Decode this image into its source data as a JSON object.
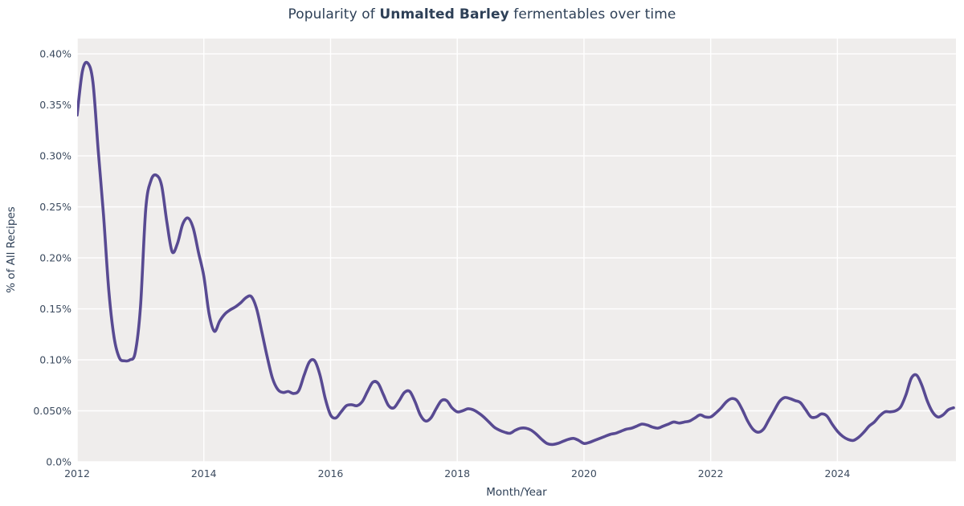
{
  "title": {
    "prefix": "Popularity of ",
    "emphasis": "Unmalted Barley",
    "suffix": " fermentables over time"
  },
  "chart_data": {
    "type": "line",
    "title": "Popularity of Unmalted Barley fermentables over time",
    "xlabel": "Month/Year",
    "ylabel": "% of All Recipes",
    "legend_position": "none",
    "grid": true,
    "colors": {
      "line": "#584a92",
      "plot_background": "#efedec",
      "gridline": "#ffffff",
      "title_text": "#2e4057",
      "tick_text": "#3c4b5f"
    },
    "ylim": [
      0,
      0.415
    ],
    "x_range": [
      "2012-01",
      "2025-11"
    ],
    "y_ticks": [
      {
        "value": 0.0,
        "label": "0.0%"
      },
      {
        "value": 0.05,
        "label": "0.050%"
      },
      {
        "value": 0.1,
        "label": "0.10%"
      },
      {
        "value": 0.15,
        "label": "0.15%"
      },
      {
        "value": 0.2,
        "label": "0.20%"
      },
      {
        "value": 0.25,
        "label": "0.25%"
      },
      {
        "value": 0.3,
        "label": "0.30%"
      },
      {
        "value": 0.35,
        "label": "0.35%"
      },
      {
        "value": 0.4,
        "label": "0.40%"
      }
    ],
    "x_ticks": [
      {
        "month_index": 0,
        "label": "2012"
      },
      {
        "month_index": 24,
        "label": "2014"
      },
      {
        "month_index": 48,
        "label": "2016"
      },
      {
        "month_index": 72,
        "label": "2018"
      },
      {
        "month_index": 96,
        "label": "2020"
      },
      {
        "month_index": 120,
        "label": "2022"
      },
      {
        "month_index": 144,
        "label": "2024"
      }
    ],
    "series": [
      {
        "name": "Unmalted Barley",
        "unit": "% of all recipes",
        "start_month": "2012-01",
        "frequency": "monthly",
        "values_pct": [
          0.34,
          0.383,
          0.391,
          0.372,
          0.305,
          0.242,
          0.168,
          0.122,
          0.102,
          0.099,
          0.1,
          0.107,
          0.152,
          0.248,
          0.276,
          0.281,
          0.271,
          0.235,
          0.206,
          0.214,
          0.233,
          0.239,
          0.229,
          0.205,
          0.182,
          0.145,
          0.128,
          0.138,
          0.145,
          0.149,
          0.152,
          0.156,
          0.161,
          0.162,
          0.15,
          0.127,
          0.103,
          0.082,
          0.071,
          0.068,
          0.069,
          0.067,
          0.07,
          0.085,
          0.098,
          0.099,
          0.085,
          0.062,
          0.046,
          0.043,
          0.049,
          0.055,
          0.056,
          0.055,
          0.059,
          0.069,
          0.078,
          0.077,
          0.066,
          0.055,
          0.053,
          0.06,
          0.068,
          0.069,
          0.059,
          0.046,
          0.04,
          0.043,
          0.052,
          0.06,
          0.06,
          0.053,
          0.049,
          0.05,
          0.052,
          0.051,
          0.048,
          0.044,
          0.039,
          0.034,
          0.031,
          0.029,
          0.028,
          0.031,
          0.033,
          0.033,
          0.031,
          0.027,
          0.022,
          0.018,
          0.017,
          0.018,
          0.02,
          0.022,
          0.023,
          0.021,
          0.018,
          0.019,
          0.021,
          0.023,
          0.025,
          0.027,
          0.028,
          0.03,
          0.032,
          0.033,
          0.035,
          0.037,
          0.036,
          0.034,
          0.033,
          0.035,
          0.037,
          0.039,
          0.038,
          0.039,
          0.04,
          0.043,
          0.046,
          0.044,
          0.044,
          0.048,
          0.053,
          0.059,
          0.062,
          0.06,
          0.051,
          0.04,
          0.032,
          0.029,
          0.032,
          0.041,
          0.05,
          0.059,
          0.063,
          0.062,
          0.06,
          0.058,
          0.051,
          0.044,
          0.044,
          0.047,
          0.045,
          0.037,
          0.03,
          0.025,
          0.022,
          0.021,
          0.024,
          0.029,
          0.035,
          0.039,
          0.045,
          0.049,
          0.049,
          0.05,
          0.054,
          0.066,
          0.082,
          0.085,
          0.075,
          0.06,
          0.049,
          0.044,
          0.046,
          0.051,
          0.053
        ]
      }
    ]
  }
}
